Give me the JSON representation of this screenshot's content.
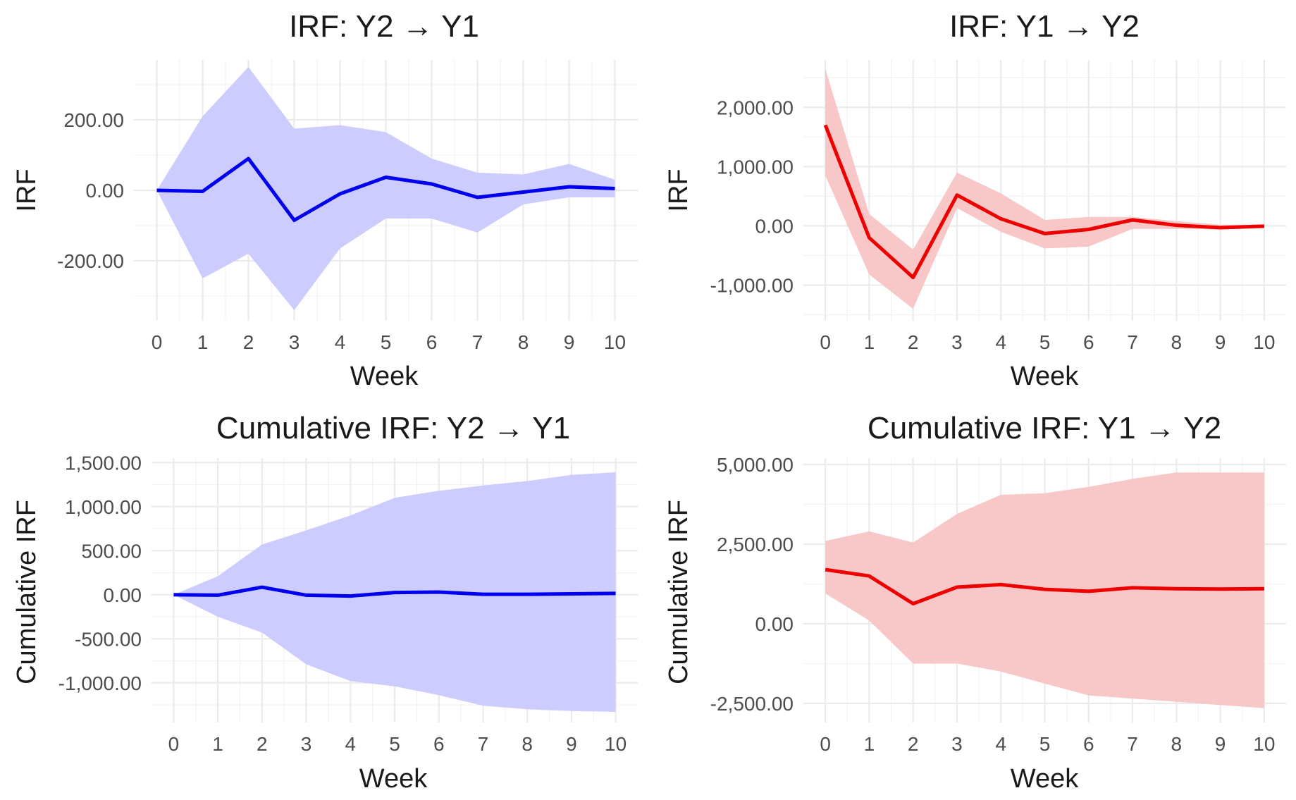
{
  "figure": {
    "arrow": "→"
  },
  "chart_data": [
    {
      "type": "line",
      "title": "IRF: Y2 → Y1",
      "xlabel": "Week",
      "ylabel": "IRF",
      "color": "#0000ee",
      "band_color": "#c9c9ff",
      "x": [
        0,
        1,
        2,
        3,
        4,
        5,
        6,
        7,
        8,
        9,
        10
      ],
      "y": [
        0,
        -3,
        90,
        -85,
        -10,
        37,
        18,
        -20,
        -5,
        10,
        5
      ],
      "lower": [
        0,
        -250,
        -180,
        -340,
        -165,
        -80,
        -80,
        -120,
        -40,
        -20,
        -20
      ],
      "upper": [
        0,
        210,
        350,
        175,
        185,
        165,
        90,
        50,
        45,
        75,
        30
      ],
      "xlim": [
        -0.5,
        10.5
      ],
      "ylim": [
        -370,
        370
      ],
      "yticks": [
        -200,
        0,
        200
      ],
      "yticklabels": [
        "-200.00",
        "0.00",
        "200.00"
      ],
      "xticks": [
        0,
        1,
        2,
        3,
        4,
        5,
        6,
        7,
        8,
        9,
        10
      ]
    },
    {
      "type": "line",
      "title": "IRF: Y1 → Y2",
      "xlabel": "Week",
      "ylabel": "IRF",
      "color": "#ee0000",
      "band_color": "#f8c4c4",
      "x": [
        0,
        1,
        2,
        3,
        4,
        5,
        6,
        7,
        8,
        9,
        10
      ],
      "y": [
        1700,
        -200,
        -870,
        520,
        120,
        -130,
        -60,
        100,
        10,
        -30,
        -5
      ],
      "lower": [
        850,
        -820,
        -1400,
        300,
        -100,
        -380,
        -350,
        -50,
        -50,
        -60,
        -40
      ],
      "upper": [
        2650,
        200,
        -400,
        900,
        550,
        100,
        150,
        150,
        80,
        20,
        20
      ],
      "xlim": [
        -0.5,
        10.5
      ],
      "ylim": [
        -1600,
        2800
      ],
      "yticks": [
        -1000,
        0,
        1000,
        2000
      ],
      "yticklabels": [
        "-1,000.00",
        "0.00",
        "1,000.00",
        "2,000.00"
      ],
      "xticks": [
        0,
        1,
        2,
        3,
        4,
        5,
        6,
        7,
        8,
        9,
        10
      ]
    },
    {
      "type": "line",
      "title": "Cumulative IRF: Y2 → Y1",
      "xlabel": "Week",
      "ylabel": "Cumulative IRF",
      "color": "#0000ee",
      "band_color": "#c9c9ff",
      "x": [
        0,
        1,
        2,
        3,
        4,
        5,
        6,
        7,
        8,
        9,
        10
      ],
      "y": [
        0,
        -5,
        85,
        -5,
        -15,
        25,
        30,
        5,
        5,
        10,
        15
      ],
      "lower": [
        0,
        -250,
        -430,
        -790,
        -980,
        -1040,
        -1140,
        -1260,
        -1300,
        -1320,
        -1330
      ],
      "upper": [
        0,
        210,
        570,
        730,
        900,
        1100,
        1180,
        1240,
        1290,
        1360,
        1390
      ],
      "xlim": [
        -0.5,
        10.5
      ],
      "ylim": [
        -1450,
        1550
      ],
      "yticks": [
        -1000,
        -500,
        0,
        500,
        1000,
        1500
      ],
      "yticklabels": [
        "-1,000.00",
        "-500.00",
        "0.00",
        "500.00",
        "1,000.00",
        "1,500.00"
      ],
      "xticks": [
        0,
        1,
        2,
        3,
        4,
        5,
        6,
        7,
        8,
        9,
        10
      ]
    },
    {
      "type": "line",
      "title": "Cumulative IRF: Y1 → Y2",
      "xlabel": "Week",
      "ylabel": "Cumulative IRF",
      "color": "#ee0000",
      "band_color": "#f8c4c4",
      "x": [
        0,
        1,
        2,
        3,
        4,
        5,
        6,
        7,
        8,
        9,
        10
      ],
      "y": [
        1700,
        1500,
        630,
        1150,
        1230,
        1080,
        1020,
        1130,
        1100,
        1090,
        1100
      ],
      "lower": [
        950,
        100,
        -1250,
        -1250,
        -1500,
        -1880,
        -2250,
        -2350,
        -2450,
        -2550,
        -2650
      ],
      "upper": [
        2600,
        2900,
        2550,
        3450,
        4050,
        4100,
        4300,
        4550,
        4750,
        4750,
        4750
      ],
      "xlim": [
        -0.5,
        10.5
      ],
      "ylim": [
        -3100,
        5200
      ],
      "yticks": [
        -2500,
        0,
        2500,
        5000
      ],
      "yticklabels": [
        "-2,500.00",
        "0.00",
        "2,500.00",
        "5,000.00"
      ],
      "xticks": [
        0,
        1,
        2,
        3,
        4,
        5,
        6,
        7,
        8,
        9,
        10
      ]
    }
  ]
}
